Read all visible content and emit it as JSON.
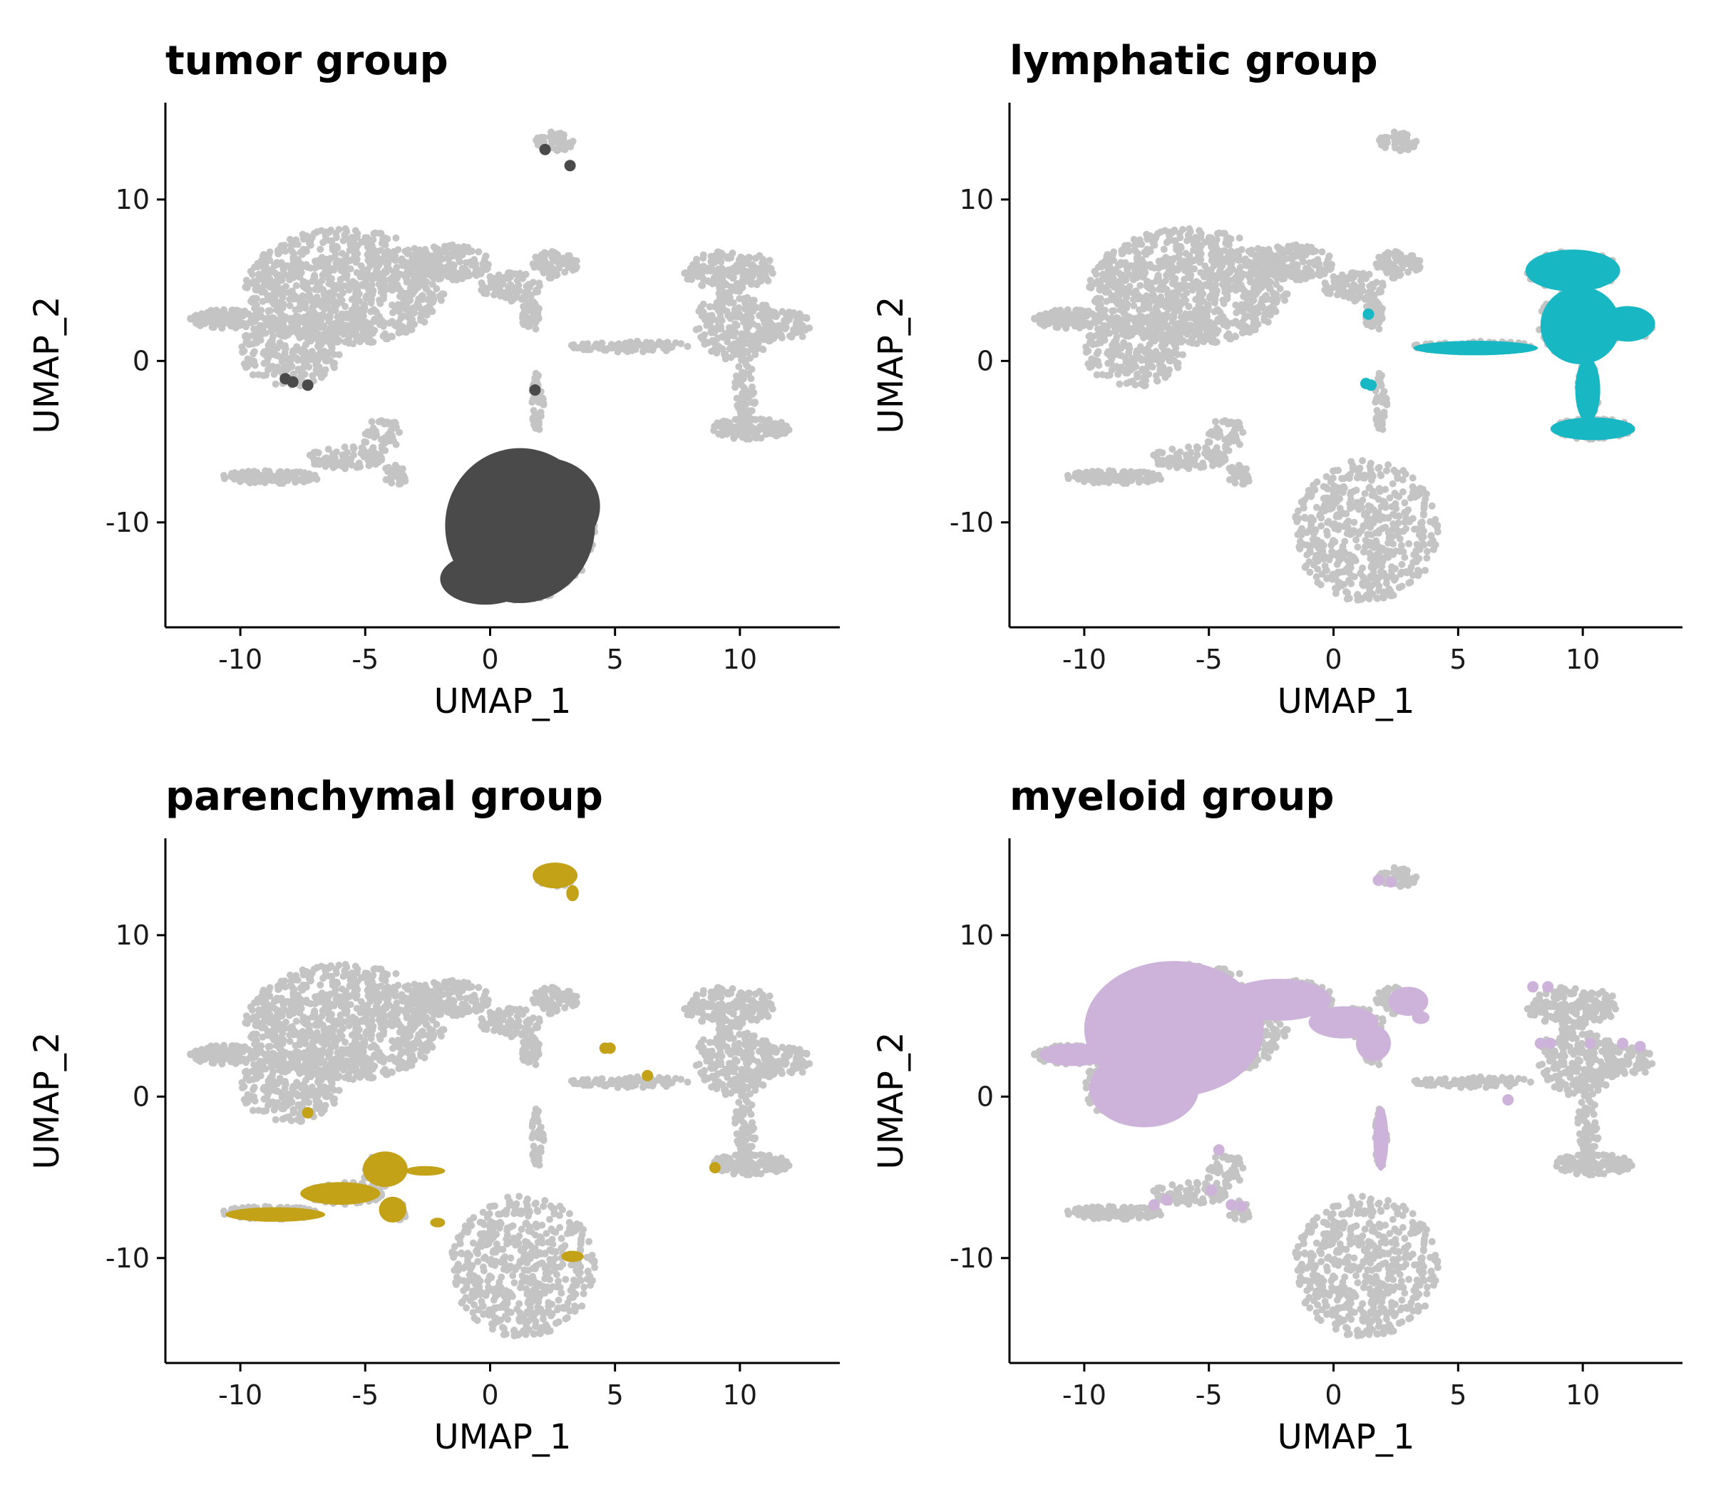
{
  "chart_data": [
    {
      "type": "scatter",
      "title": "tumor group",
      "xlabel": "UMAP_1",
      "ylabel": "UMAP_2",
      "xlim": [
        -13,
        14
      ],
      "ylim": [
        -16.5,
        16
      ],
      "xticks": [
        -10,
        -5,
        0,
        5,
        10
      ],
      "yticks": [
        -10,
        0,
        10
      ],
      "xtick_labels": [
        "-10",
        "-5",
        "0",
        "5",
        "10"
      ],
      "ytick_labels": [
        "-10",
        "0",
        "10"
      ],
      "highlight_color": "#4a4a4a",
      "background_color": "#c4c4c4",
      "highlight": {
        "blobs": [
          {
            "x": 1.2,
            "y": -10.2,
            "rx": 3.0,
            "ry": 4.8
          },
          {
            "x": 2.2,
            "y": -9.0,
            "rx": 2.2,
            "ry": 3.0
          },
          {
            "x": -0.2,
            "y": -13.5,
            "rx": 1.8,
            "ry": 1.6
          }
        ],
        "points": [
          [
            2.2,
            13.1
          ],
          [
            3.2,
            12.1
          ],
          [
            -8.2,
            -1.1
          ],
          [
            -7.9,
            -1.3
          ],
          [
            -7.3,
            -1.5
          ],
          [
            1.8,
            -1.8
          ]
        ]
      }
    },
    {
      "type": "scatter",
      "title": "lymphatic group",
      "xlabel": "UMAP_1",
      "ylabel": "UMAP_2",
      "xlim": [
        -13,
        14
      ],
      "ylim": [
        -16.5,
        16
      ],
      "xticks": [
        -10,
        -5,
        0,
        5,
        10
      ],
      "yticks": [
        -10,
        0,
        10
      ],
      "xtick_labels": [
        "-10",
        "-5",
        "0",
        "5",
        "10"
      ],
      "ytick_labels": [
        "-10",
        "0",
        "10"
      ],
      "highlight_color": "#17b8c3",
      "background_color": "#c4c4c4",
      "highlight": {
        "blobs": [
          {
            "x": 9.6,
            "y": 5.6,
            "rx": 1.9,
            "ry": 1.3
          },
          {
            "x": 9.9,
            "y": 2.2,
            "rx": 1.6,
            "ry": 2.4
          },
          {
            "x": 11.8,
            "y": 2.3,
            "rx": 1.1,
            "ry": 1.1
          },
          {
            "x": 5.7,
            "y": 0.8,
            "rx": 2.5,
            "ry": 0.45
          },
          {
            "x": 10.2,
            "y": -1.8,
            "rx": 0.5,
            "ry": 2.0
          },
          {
            "x": 10.4,
            "y": -4.2,
            "rx": 1.7,
            "ry": 0.7
          }
        ],
        "points": [
          [
            1.4,
            2.9
          ],
          [
            1.5,
            -1.5
          ],
          [
            1.3,
            -1.4
          ]
        ]
      }
    },
    {
      "type": "scatter",
      "title": "parenchymal group",
      "xlabel": "UMAP_1",
      "ylabel": "UMAP_2",
      "xlim": [
        -13,
        14
      ],
      "ylim": [
        -16.5,
        16
      ],
      "xticks": [
        -10,
        -5,
        0,
        5,
        10
      ],
      "yticks": [
        -10,
        0,
        10
      ],
      "xtick_labels": [
        "-10",
        "-5",
        "0",
        "5",
        "10"
      ],
      "ytick_labels": [
        "-10",
        "0",
        "10"
      ],
      "highlight_color": "#c4a218",
      "background_color": "#c4c4c4",
      "highlight": {
        "blobs": [
          {
            "x": 2.6,
            "y": 13.7,
            "rx": 0.9,
            "ry": 0.8
          },
          {
            "x": 3.3,
            "y": 12.6,
            "rx": 0.25,
            "ry": 0.5
          },
          {
            "x": -8.6,
            "y": -7.3,
            "rx": 2.0,
            "ry": 0.45
          },
          {
            "x": -6.0,
            "y": -6.0,
            "rx": 1.6,
            "ry": 0.7
          },
          {
            "x": -4.2,
            "y": -4.5,
            "rx": 0.9,
            "ry": 1.1
          },
          {
            "x": -2.6,
            "y": -4.6,
            "rx": 0.8,
            "ry": 0.3
          },
          {
            "x": -3.9,
            "y": -7.0,
            "rx": 0.55,
            "ry": 0.8
          },
          {
            "x": -2.1,
            "y": -7.8,
            "rx": 0.3,
            "ry": 0.3
          },
          {
            "x": 3.3,
            "y": -9.9,
            "rx": 0.45,
            "ry": 0.35
          }
        ],
        "points": [
          [
            4.8,
            3.0
          ],
          [
            4.6,
            3.0
          ],
          [
            6.3,
            1.3
          ],
          [
            -7.3,
            -1.0
          ],
          [
            9.0,
            -4.4
          ]
        ]
      }
    },
    {
      "type": "scatter",
      "title": "myeloid group",
      "xlabel": "UMAP_1",
      "ylabel": "UMAP_2",
      "xlim": [
        -13,
        14
      ],
      "ylim": [
        -16.5,
        16
      ],
      "xticks": [
        -10,
        -5,
        0,
        5,
        10
      ],
      "yticks": [
        -10,
        0,
        10
      ],
      "xtick_labels": [
        "-10",
        "-5",
        "0",
        "5",
        "10"
      ],
      "ytick_labels": [
        "-10",
        "0",
        "10"
      ],
      "highlight_color": "#cdb3da",
      "background_color": "#c4c4c4",
      "highlight": {
        "blobs": [
          {
            "x": -6.4,
            "y": 4.2,
            "rx": 3.6,
            "ry": 4.2
          },
          {
            "x": -7.6,
            "y": 0.5,
            "rx": 2.2,
            "ry": 2.4
          },
          {
            "x": -10.4,
            "y": 2.6,
            "rx": 1.4,
            "ry": 0.7
          },
          {
            "x": -2.2,
            "y": 6.0,
            "rx": 2.1,
            "ry": 1.3
          },
          {
            "x": 0.4,
            "y": 4.6,
            "rx": 1.4,
            "ry": 1.0
          },
          {
            "x": 1.6,
            "y": 3.3,
            "rx": 0.7,
            "ry": 1.1
          },
          {
            "x": 3.0,
            "y": 5.9,
            "rx": 0.8,
            "ry": 0.9
          },
          {
            "x": 3.5,
            "y": 4.9,
            "rx": 0.35,
            "ry": 0.4
          },
          {
            "x": 1.9,
            "y": -2.6,
            "rx": 0.3,
            "ry": 2.0
          }
        ],
        "points": [
          [
            2.3,
            13.3
          ],
          [
            1.8,
            13.4
          ],
          [
            -4.6,
            -3.3
          ],
          [
            -4.9,
            -5.8
          ],
          [
            -6.7,
            -6.4
          ],
          [
            -7.2,
            -6.7
          ],
          [
            -4.1,
            -6.7
          ],
          [
            -3.7,
            -6.8
          ],
          [
            7.0,
            -0.2
          ],
          [
            8.3,
            3.3
          ],
          [
            8.7,
            3.3
          ],
          [
            10.3,
            3.3
          ],
          [
            11.6,
            3.3
          ],
          [
            12.3,
            3.1
          ],
          [
            8.0,
            6.8
          ],
          [
            8.6,
            6.8
          ]
        ]
      }
    }
  ]
}
